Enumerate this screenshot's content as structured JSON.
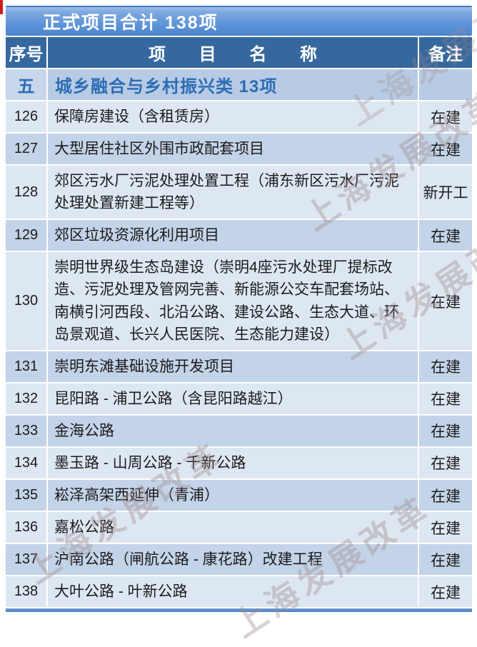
{
  "title_bar": {
    "label": "正式项目合计  138项"
  },
  "colors": {
    "accent_blue": "#4f81bd",
    "header_bg": "#35689e",
    "title_gradient_top": "#9dbce8",
    "title_gradient_bottom": "#4b85cd",
    "row_light": "#dde7f2",
    "row_dark": "#c3d3e8",
    "section_bg": "#b7cbe4",
    "section_text": "#2e6cb5",
    "red_mark": "#c9211e",
    "watermark": "#9e8a8a"
  },
  "watermark": {
    "text": "上海发展改革"
  },
  "table": {
    "columns": {
      "no": "序号",
      "name": "项 目 名 称",
      "remark": "备注"
    },
    "section": {
      "no": "五",
      "title": "城乡融合与乡村振兴类  13项",
      "remark": ""
    },
    "rows": [
      {
        "no": "126",
        "name": "保障房建设（含租赁房）",
        "remark": "在建"
      },
      {
        "no": "127",
        "name": "大型居住社区外围市政配套项目",
        "remark": "在建"
      },
      {
        "no": "128",
        "name": "郊区污水厂污泥处理处置工程（浦东新区污水厂污泥处理处置新建工程等）",
        "remark": "新开工"
      },
      {
        "no": "129",
        "name": "郊区垃圾资源化利用项目",
        "remark": "在建"
      },
      {
        "no": "130",
        "name": "崇明世界级生态岛建设（崇明4座污水处理厂提标改造、污泥处理及管网完善、新能源公交车配套场站、南横引河西段、北沿公路、建设公路、生态大道、环岛景观道、长兴人民医院、生态能力建设）",
        "remark": "在建"
      },
      {
        "no": "131",
        "name": "崇明东滩基础设施开发项目",
        "remark": "在建"
      },
      {
        "no": "132",
        "name": "昆阳路 - 浦卫公路（含昆阳路越江）",
        "remark": "在建"
      },
      {
        "no": "133",
        "name": "金海公路",
        "remark": "在建"
      },
      {
        "no": "134",
        "name": "墨玉路 - 山周公路 - 千新公路",
        "remark": "在建"
      },
      {
        "no": "135",
        "name": "崧泽高架西延伸（青浦）",
        "remark": "在建"
      },
      {
        "no": "136",
        "name": "嘉松公路",
        "remark": "在建"
      },
      {
        "no": "137",
        "name": "沪南公路（闸航公路 - 康花路）改建工程",
        "remark": "在建"
      },
      {
        "no": "138",
        "name": "大叶公路 - 叶新公路",
        "remark": "在建"
      }
    ]
  }
}
